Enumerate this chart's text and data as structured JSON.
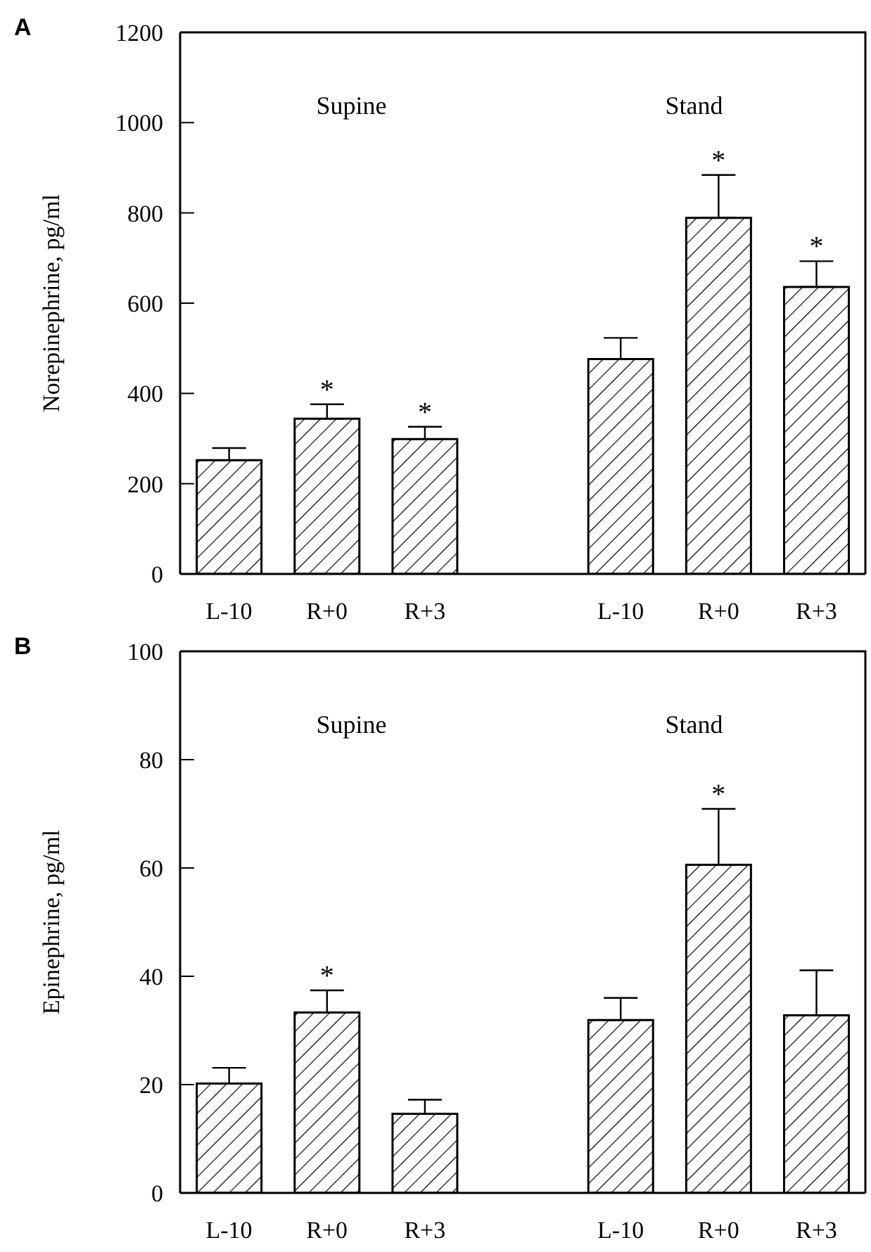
{
  "chart_data": [
    {
      "type": "bar",
      "title": "A",
      "ylabel": "Norepinephrine, pg/ml",
      "categories": [
        "L-10",
        "R+0",
        "R+3",
        null,
        "L-10",
        "R+0",
        "R+3"
      ],
      "series": [
        {
          "color": "#000000",
          "values": [
            252,
            344,
            299,
            null,
            476,
            789,
            636
          ],
          "errors": [
            [
              252,
              279
            ],
            [
              344,
              376
            ],
            [
              299,
              326
            ],
            null,
            [
              476,
              523
            ],
            [
              789,
              884
            ],
            [
              636,
              693
            ]
          ],
          "value_labels": [
            null,
            "*",
            "*",
            null,
            null,
            "*",
            "*"
          ]
        }
      ],
      "ylim": [
        0,
        1200
      ],
      "yticks": [
        0,
        200,
        400,
        600,
        800,
        1000,
        1200
      ],
      "grid": false,
      "legend": false,
      "annotations": [
        "Supine",
        "Stand"
      ]
    },
    {
      "type": "bar",
      "title": "B",
      "ylabel": "Epinephrine, pg/ml",
      "categories": [
        "L-10",
        "R+0",
        "R+3",
        null,
        "L-10",
        "R+0",
        "R+3"
      ],
      "series": [
        {
          "color": "#000000",
          "values": [
            20.2,
            33.3,
            14.6,
            null,
            31.9,
            60.6,
            32.8
          ],
          "errors": [
            [
              20.2,
              23.1
            ],
            [
              33.3,
              37.4
            ],
            [
              14.6,
              17.2
            ],
            null,
            [
              31.9,
              36
            ],
            [
              60.6,
              70.9
            ],
            [
              32.8,
              41.1
            ]
          ],
          "value_labels": [
            null,
            "*",
            null,
            null,
            null,
            "*",
            null
          ]
        }
      ],
      "ylim": [
        0,
        100
      ],
      "yticks": [
        0,
        20,
        40,
        60,
        80,
        100
      ],
      "grid": false,
      "legend": false,
      "annotations": [
        "Supine",
        "Stand"
      ]
    }
  ]
}
